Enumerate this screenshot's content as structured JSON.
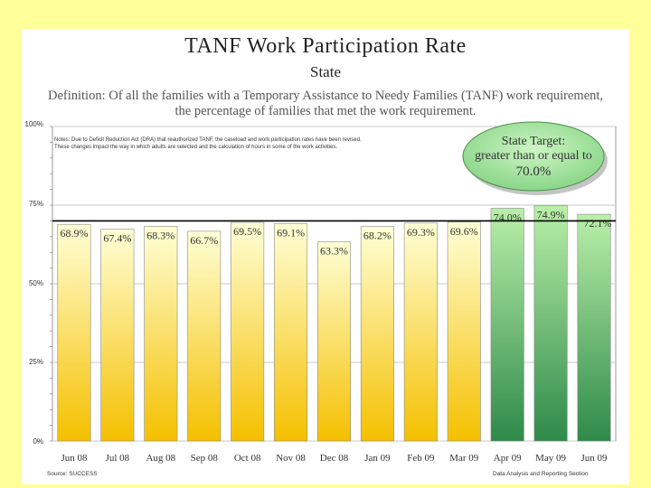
{
  "header": {
    "title": "TANF  Work  Participation  Rate",
    "subtitle": "State",
    "definition_line1": "Definition: Of all the families with a Temporary Assistance to Needy Families (TANF) work requirement,",
    "definition_line2": "the percentage of families that met the work requirement."
  },
  "note": "Notes: Due to Deficit Reduction Act (DRA) that reauthorized TANF, the caseload and work participation rates have been revised. These changes impact the way in which adults are selected and the calculation of hours in some of the work activities.",
  "target": {
    "line1": "State Target:",
    "line2": "greater than or equal to",
    "line3": "70.0%"
  },
  "footer": {
    "source": "Source: SUCCESS",
    "section": "Data Analysis and Reporting Section"
  },
  "colors": {
    "background": "#ffff99",
    "bar_yellow_top": "#ffffd6",
    "bar_yellow_bottom": "#f5c000",
    "bar_green_top": "#b9f0a8",
    "bar_green_bottom": "#2f8a4a"
  },
  "chart_data": {
    "type": "bar",
    "title": "TANF  Work  Participation  Rate",
    "subtitle": "State",
    "categories": [
      "Jun 08",
      "Jul 08",
      "Aug 08",
      "Sep 08",
      "Oct 08",
      "Nov 08",
      "Dec 08",
      "Jan 09",
      "Feb 09",
      "Mar 09",
      "Apr 09",
      "May 09",
      "Jun 09"
    ],
    "values": [
      68.9,
      67.4,
      68.3,
      66.7,
      69.5,
      69.1,
      63.3,
      68.2,
      69.3,
      69.6,
      74.0,
      74.9,
      72.1
    ],
    "labels": [
      "68.9%",
      "67.4%",
      "68.3%",
      "66.7%",
      "69.5%",
      "69.1%",
      "63.3%",
      "68.2%",
      "69.3%",
      "69.6%",
      "74.0%",
      "74.9%",
      "72.1%"
    ],
    "bar_color_groups": [
      "yellow",
      "yellow",
      "yellow",
      "yellow",
      "yellow",
      "yellow",
      "yellow",
      "yellow",
      "yellow",
      "yellow",
      "green",
      "green",
      "green"
    ],
    "yticks": [
      "0%",
      "25%",
      "50%",
      "75%",
      "100%"
    ],
    "ylim": [
      0,
      100
    ],
    "target_value": 70.0,
    "grid": true
  }
}
